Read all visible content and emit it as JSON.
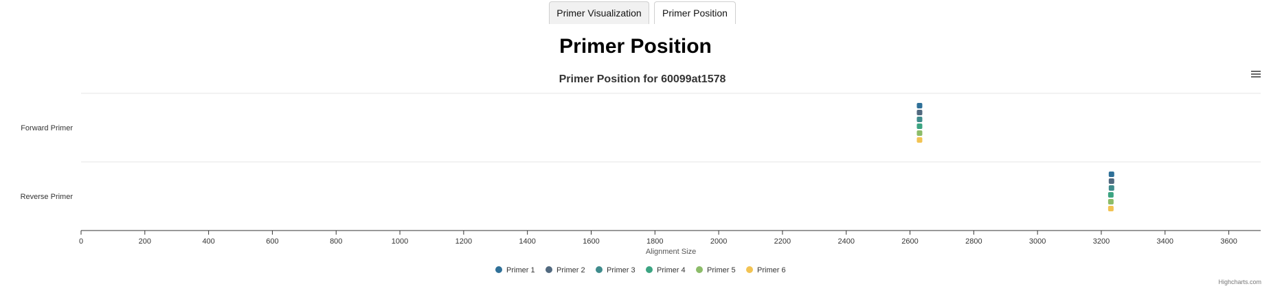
{
  "tabs": [
    {
      "label": "Primer Visualization",
      "active": false
    },
    {
      "label": "Primer Position",
      "active": true
    }
  ],
  "page_title": "Primer Position",
  "credits": "Highcharts.com",
  "menu_icon": "hamburger-menu-icon",
  "chart_data": {
    "type": "scatter",
    "title": "Primer Position for 60099at1578",
    "xlabel": "Alignment Size",
    "ylabel": "",
    "categories": [
      "Forward Primer",
      "Reverse Primer"
    ],
    "xlim": [
      0,
      3700
    ],
    "xticks": [
      0,
      200,
      400,
      600,
      800,
      1000,
      1200,
      1400,
      1600,
      1800,
      2000,
      2200,
      2400,
      2600,
      2800,
      3000,
      3200,
      3400,
      3600
    ],
    "legend_position": "bottom-center",
    "series": [
      {
        "name": "Primer 1",
        "color": "#2f7098",
        "points": [
          {
            "category": "Forward Primer",
            "x": 2630
          },
          {
            "category": "Reverse Primer",
            "x": 3232
          }
        ]
      },
      {
        "name": "Primer 2",
        "color": "#51697f",
        "points": [
          {
            "category": "Forward Primer",
            "x": 2630
          },
          {
            "category": "Reverse Primer",
            "x": 3232
          }
        ]
      },
      {
        "name": "Primer 3",
        "color": "#3f8b8c",
        "points": [
          {
            "category": "Forward Primer",
            "x": 2630
          },
          {
            "category": "Reverse Primer",
            "x": 3232
          }
        ]
      },
      {
        "name": "Primer 4",
        "color": "#3ca482",
        "points": [
          {
            "category": "Forward Primer",
            "x": 2630
          },
          {
            "category": "Reverse Primer",
            "x": 3230
          }
        ]
      },
      {
        "name": "Primer 5",
        "color": "#8cbc69",
        "points": [
          {
            "category": "Forward Primer",
            "x": 2630
          },
          {
            "category": "Reverse Primer",
            "x": 3230
          }
        ]
      },
      {
        "name": "Primer 6",
        "color": "#f2c353",
        "points": [
          {
            "category": "Forward Primer",
            "x": 2630
          },
          {
            "category": "Reverse Primer",
            "x": 3230
          }
        ]
      }
    ]
  }
}
